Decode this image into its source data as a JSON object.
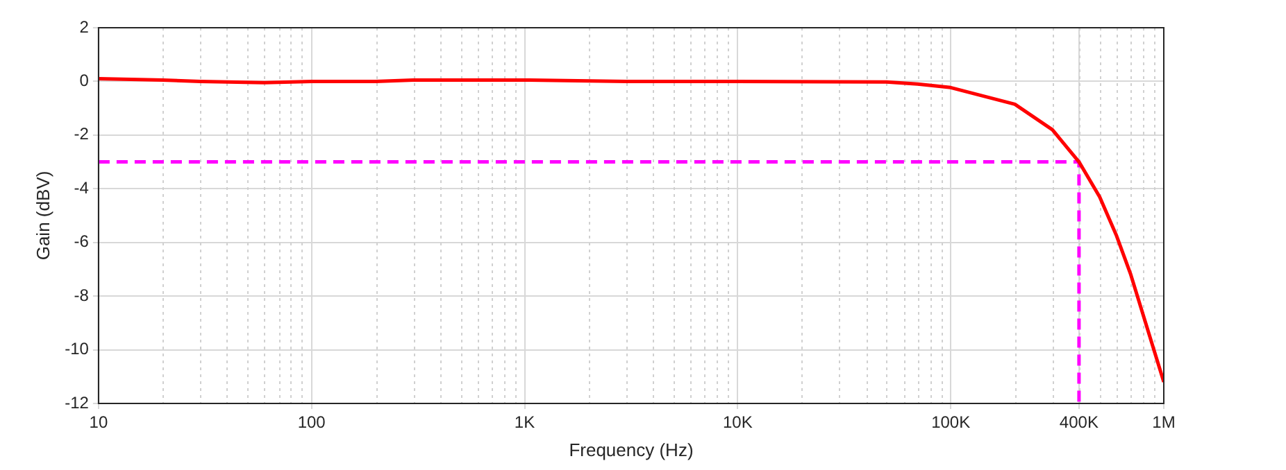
{
  "chart_data": {
    "type": "line",
    "xlabel": "Frequency (Hz)",
    "ylabel": "Gain (dBV)",
    "log": "x",
    "grid": true,
    "marker": "none",
    "legend": false,
    "xlim": [
      10,
      1000000
    ],
    "xticks": [
      {
        "value": 10,
        "label": "10"
      },
      {
        "value": 100,
        "label": "100"
      },
      {
        "value": 1000,
        "label": "1K"
      },
      {
        "value": 10000,
        "label": "10K"
      },
      {
        "value": 100000,
        "label": "100K"
      },
      {
        "value": 400000,
        "label": "400K"
      },
      {
        "value": 1000000,
        "label": "1M"
      }
    ],
    "ylim": [
      -12,
      2
    ],
    "yticks": [
      -12,
      -10,
      -8,
      -6,
      -4,
      -2,
      0,
      2
    ],
    "series": [
      {
        "color": "#ff0000",
        "line_style": "solid",
        "x": [
          10,
          20,
          30,
          60,
          100,
          200,
          300,
          1000,
          3000,
          10000,
          50000,
          70000,
          100000,
          200000,
          300000,
          400000,
          500000,
          600000,
          700000,
          1000000
        ],
        "values": [
          0.1,
          0.05,
          0,
          -0.05,
          0,
          0,
          0.05,
          0.05,
          0,
          0,
          -0.02,
          -0.1,
          -0.23,
          -0.85,
          -1.8,
          -3,
          -4.3,
          -5.75,
          -7.2,
          -11.2
        ]
      },
      {
        "color": "#ff00ff",
        "line_style": "dashed",
        "x": [
          10,
          400000,
          400000
        ],
        "values": [
          -3,
          -3,
          -12
        ]
      }
    ]
  }
}
